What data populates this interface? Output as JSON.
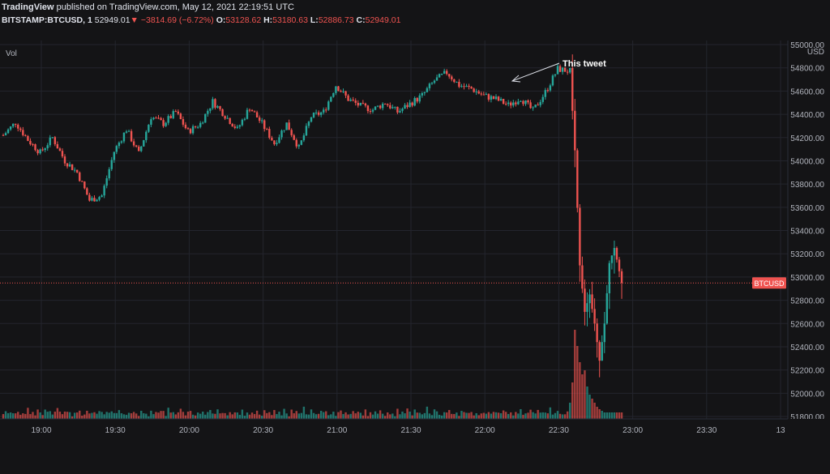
{
  "header": {
    "brand": "TradingView",
    "published": " published on TradingView.com, May 12, 2021 22:19:51 UTC",
    "symbol": "BITSTAMP:BTCUSD, 1",
    "last": "52949.01",
    "down_arrow": "▼",
    "change": "−3814.69 (−6.72%)",
    "o_label": "O:",
    "o_value": "53128.62",
    "h_label": "H:",
    "h_value": "53180.63",
    "l_label": "L:",
    "l_value": "52886.73",
    "c_label": "C:",
    "c_value": "52949.01"
  },
  "colors": {
    "background": "#141416",
    "grid": "#23252d",
    "up": "#26a69a",
    "down": "#ef5350",
    "text": "#d1d4dc"
  },
  "chart_data": {
    "type": "candlestick",
    "volume_label": "Vol",
    "currency": "USD",
    "price_tag": "BTCUSD",
    "annotation": "This tweet",
    "ylim": [
      51700,
      55000
    ],
    "yticks": [
      55000,
      54800,
      54600,
      54400,
      54200,
      54000,
      53800,
      53600,
      53400,
      53200,
      53000,
      52800,
      52600,
      52400,
      52200,
      52000,
      51800
    ],
    "ytick_labels": [
      "55000.00",
      "54800.00",
      "54600.00",
      "54400.00",
      "54200.00",
      "54000.00",
      "53800.00",
      "53600.00",
      "53400.00",
      "53200.00",
      "53000.00",
      "52800.00",
      "52600.00",
      "52400.00",
      "52200.00",
      "52000.00",
      "51800.00"
    ],
    "current_price": 52949.01,
    "xticks": [
      "19:00",
      "19:30",
      "20:00",
      "20:30",
      "21:00",
      "21:30",
      "22:00",
      "22:30",
      "23:00",
      "23:30",
      "13"
    ],
    "close_path": [
      [
        0,
        54220
      ],
      [
        5,
        54330
      ],
      [
        10,
        54180
      ],
      [
        15,
        54070
      ],
      [
        20,
        54200
      ],
      [
        25,
        54000
      ],
      [
        30,
        53900
      ],
      [
        35,
        53660
      ],
      [
        40,
        53700
      ],
      [
        45,
        54080
      ],
      [
        50,
        54270
      ],
      [
        55,
        54060
      ],
      [
        60,
        54380
      ],
      [
        65,
        54320
      ],
      [
        70,
        54420
      ],
      [
        75,
        54250
      ],
      [
        80,
        54320
      ],
      [
        85,
        54510
      ],
      [
        90,
        54390
      ],
      [
        95,
        54270
      ],
      [
        100,
        54460
      ],
      [
        105,
        54320
      ],
      [
        110,
        54150
      ],
      [
        115,
        54320
      ],
      [
        120,
        54110
      ],
      [
        125,
        54380
      ],
      [
        130,
        54420
      ],
      [
        135,
        54650
      ],
      [
        140,
        54530
      ],
      [
        145,
        54470
      ],
      [
        150,
        54440
      ],
      [
        155,
        54500
      ],
      [
        160,
        54420
      ],
      [
        165,
        54490
      ],
      [
        170,
        54560
      ],
      [
        175,
        54690
      ],
      [
        180,
        54760
      ],
      [
        185,
        54650
      ],
      [
        190,
        54620
      ],
      [
        195,
        54560
      ],
      [
        200,
        54530
      ],
      [
        205,
        54480
      ],
      [
        210,
        54540
      ],
      [
        215,
        54430
      ],
      [
        220,
        54590
      ],
      [
        225,
        54790
      ],
      [
        230,
        54770
      ],
      [
        232,
        54090
      ],
      [
        234,
        53100
      ],
      [
        236,
        52700
      ],
      [
        238,
        52850
      ],
      [
        240,
        52600
      ],
      [
        242,
        52280
      ],
      [
        244,
        52600
      ],
      [
        246,
        53120
      ],
      [
        248,
        53250
      ],
      [
        251,
        52949
      ]
    ],
    "volume_pattern": [
      5,
      6,
      4,
      7,
      5,
      3,
      8,
      4,
      6,
      3,
      10,
      5,
      6,
      4,
      9,
      6,
      3,
      11,
      5,
      7,
      4,
      6,
      12,
      5,
      4,
      8,
      6,
      5,
      3,
      7,
      6,
      9,
      4,
      5,
      7,
      3,
      6,
      8,
      4,
      6,
      5,
      3,
      7,
      4,
      6,
      5,
      4,
      8,
      3,
      5
    ]
  }
}
